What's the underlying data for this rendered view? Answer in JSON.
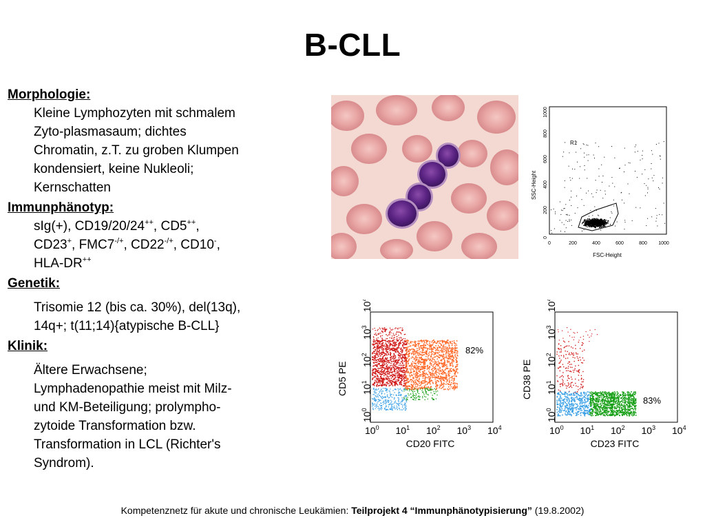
{
  "slide": {
    "title": "B-CLL",
    "sections": [
      {
        "heading": "Morphologie:",
        "lines": [
          "Kleine Lymphozyten mit schmalem",
          "Zyto-plasmasaum; dichtes",
          "Chromatin, z.T. zu groben Klumpen",
          "kondensiert, keine Nukleoli;",
          "Kernschatten"
        ]
      },
      {
        "heading": "Immunphänotyp:",
        "immuno_line1": {
          "a": "sIg(+),  CD19/20/24",
          "a_sup": "++",
          "b": ", CD5",
          "b_sup": "++",
          "c": ","
        },
        "immuno_line2": {
          "a": "CD23",
          "a_sup": "+",
          "b": ",  FMC7",
          "b_sup": "-/+",
          "c": ", CD22",
          "c_sup": "-/+",
          "d": ", CD10",
          "d_sup": "-",
          "e": ","
        },
        "immuno_line3": {
          "a": "HLA-DR",
          "a_sup": "++"
        }
      },
      {
        "heading": "Genetik:",
        "lines": [
          "Trisomie 12 (bis ca. 30%), del(13q),",
          "14q+;  t(11;14){atypische B-CLL}"
        ]
      },
      {
        "heading": "Klinik:",
        "lines": [
          "Ältere Erwachsene;",
          "Lymphadenopathie meist mit Milz-",
          "und KM-Beteiligung; prolympho-",
          "zytoide Transformation bzw.",
          "Transformation in LCL (Richter's",
          "Syndrom)."
        ]
      }
    ]
  },
  "figures": {
    "scatter_main": {
      "ylabel": "SSC-Height",
      "xlabel": "FSC-Height",
      "gate_label": "R1",
      "ticks": [
        "0",
        "200",
        "400",
        "600",
        "800",
        "1000"
      ]
    },
    "flow_cd5_cd20": {
      "ylabel": "CD5 PE",
      "xlabel": "CD20 FITC",
      "percent": "82%",
      "colors": {
        "red": "#d11a1a",
        "orange": "#ff6a2a",
        "blue": "#3aa0e6",
        "green": "#18a018"
      }
    },
    "flow_cd38_cd23": {
      "ylabel": "CD38 PE",
      "xlabel": "CD23 FITC",
      "percent": "83%",
      "colors": {
        "red": "#d11a1a",
        "blue": "#3aa0e6",
        "green": "#18a018"
      }
    },
    "log_ticks": [
      "10",
      "10",
      "10",
      "10",
      "10"
    ],
    "log_exps": [
      "0",
      "1",
      "2",
      "3",
      "4"
    ]
  },
  "footer": {
    "prefix": "Kompetenznetz für akute und chronische Leukämien: ",
    "bold": "Teilprojekt 4 “Immunphänotypisierung”",
    "suffix": " (19.8.2002)"
  }
}
